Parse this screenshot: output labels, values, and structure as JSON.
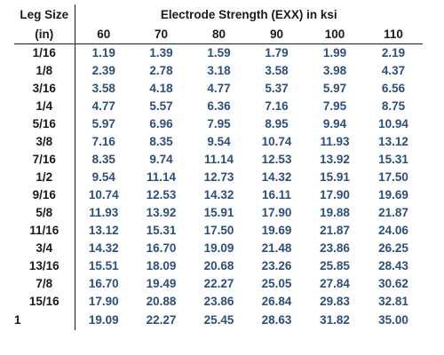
{
  "table": {
    "leg_header": "Leg Size",
    "unit_header": "(in)",
    "strength_header": "Electrode Strength (EXX) in ksi",
    "strengths": [
      "60",
      "70",
      "80",
      "90",
      "100",
      "110"
    ],
    "rows": [
      {
        "leg": "1/16",
        "values": [
          "1.19",
          "1.39",
          "1.59",
          "1.79",
          "1.99",
          "2.19"
        ]
      },
      {
        "leg": "1/8",
        "values": [
          "2.39",
          "2.78",
          "3.18",
          "3.58",
          "3.98",
          "4.37"
        ]
      },
      {
        "leg": "3/16",
        "values": [
          "3.58",
          "4.18",
          "4.77",
          "5.37",
          "5.97",
          "6.56"
        ]
      },
      {
        "leg": "1/4",
        "values": [
          "4.77",
          "5.57",
          "6.36",
          "7.16",
          "7.95",
          "8.75"
        ]
      },
      {
        "leg": "5/16",
        "values": [
          "5.97",
          "6.96",
          "7.95",
          "8.95",
          "9.94",
          "10.94"
        ]
      },
      {
        "leg": "3/8",
        "values": [
          "7.16",
          "8.35",
          "9.54",
          "10.74",
          "11.93",
          "13.12"
        ]
      },
      {
        "leg": "7/16",
        "values": [
          "8.35",
          "9.74",
          "11.14",
          "12.53",
          "13.92",
          "15.31"
        ]
      },
      {
        "leg": "1/2",
        "values": [
          "9.54",
          "11.14",
          "12.73",
          "14.32",
          "15.91",
          "17.50"
        ]
      },
      {
        "leg": "9/16",
        "values": [
          "10.74",
          "12.53",
          "14.32",
          "16.11",
          "17.90",
          "19.69"
        ]
      },
      {
        "leg": "5/8",
        "values": [
          "11.93",
          "13.92",
          "15.91",
          "17.90",
          "19.88",
          "21.87"
        ]
      },
      {
        "leg": "11/16",
        "values": [
          "13.12",
          "15.31",
          "17.50",
          "19.69",
          "21.87",
          "24.06"
        ]
      },
      {
        "leg": "3/4",
        "values": [
          "14.32",
          "16.70",
          "19.09",
          "21.48",
          "23.86",
          "26.25"
        ]
      },
      {
        "leg": "13/16",
        "values": [
          "15.51",
          "18.09",
          "20.68",
          "23.26",
          "25.85",
          "28.43"
        ]
      },
      {
        "leg": "7/8",
        "values": [
          "16.70",
          "19.49",
          "22.27",
          "25.05",
          "27.84",
          "30.62"
        ]
      },
      {
        "leg": "15/16",
        "values": [
          "17.90",
          "20.88",
          "23.86",
          "26.84",
          "29.83",
          "32.81"
        ]
      },
      {
        "leg": "1",
        "values": [
          "19.09",
          "22.27",
          "25.45",
          "28.63",
          "31.82",
          "35.00"
        ]
      }
    ]
  },
  "colors": {
    "header_text": "#1a1a1a",
    "value_text": "#2b4f7c",
    "rule": "#1a1a1a"
  }
}
